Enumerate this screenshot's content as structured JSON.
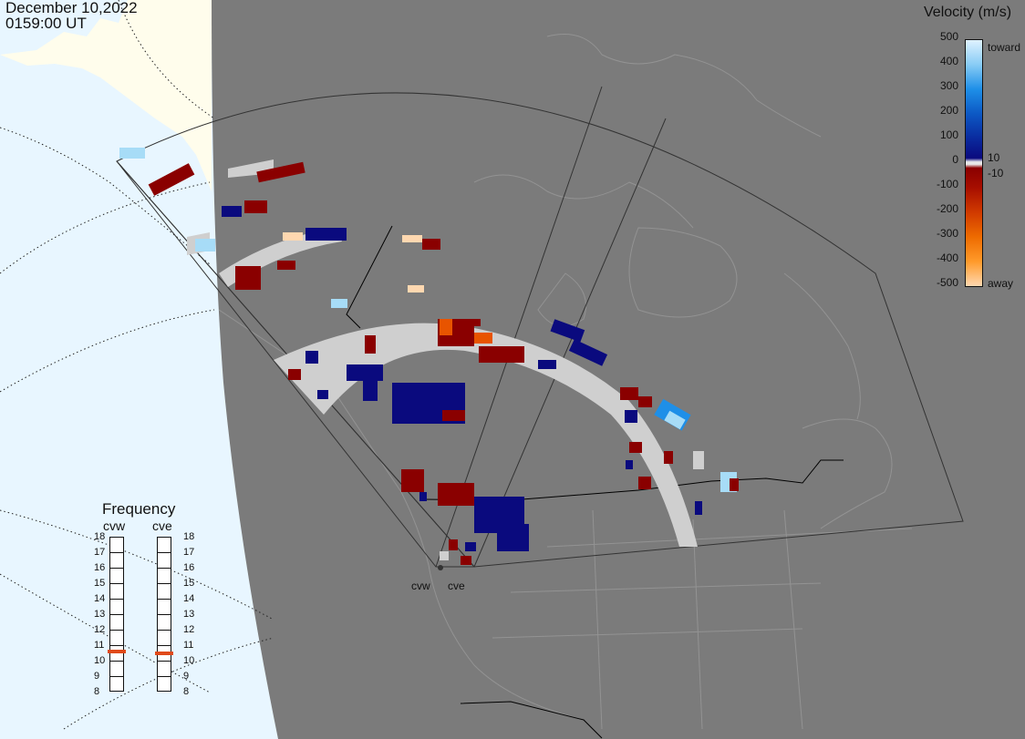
{
  "header": {
    "date": "December 10,2022",
    "time": "0159:00 UT"
  },
  "velocity_legend": {
    "title": "Velocity (m/s)",
    "ticks": [
      "500",
      "400",
      "300",
      "200",
      "100",
      "0",
      "-100",
      "-200",
      "-300",
      "-400",
      "-500"
    ],
    "toward_label": "toward",
    "away_label": "away",
    "plus_threshold": "10",
    "minus_threshold": "-10"
  },
  "frequency_panel": {
    "title": "Frequency",
    "radars": [
      {
        "name": "cvw",
        "value_mhz": 10.6
      },
      {
        "name": "cve",
        "value_mhz": 10.5
      }
    ],
    "scale": [
      "18",
      "17",
      "16",
      "15",
      "14",
      "13",
      "12",
      "11",
      "10",
      "9",
      "8"
    ],
    "indicator_color": "#e04a1a"
  },
  "radar_sites": [
    {
      "name": "cvw"
    },
    {
      "name": "cve"
    }
  ],
  "colors": {
    "background_land": "#7b7b7b",
    "ocean_offmap": "#e8f6ff",
    "landmass_offmap": "#fffdec",
    "ground_scatter": "#cfcfcf",
    "toward_light": "#a7dcf7",
    "toward_mid": "#1e8fe8",
    "toward_dark": "#0a0a7e",
    "away_dark": "#8a0000",
    "away_orange": "#e85400",
    "away_light": "#ffd8b0"
  }
}
